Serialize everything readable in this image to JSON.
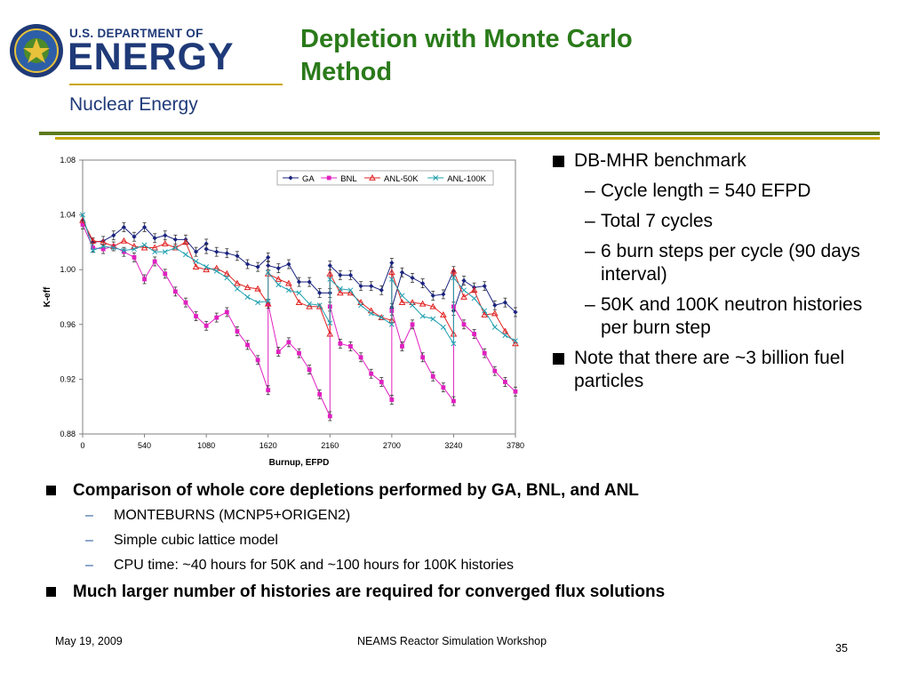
{
  "logo": {
    "small_text": "U.S. DEPARTMENT OF",
    "big_text": "ENERGY",
    "sub_text": "Nuclear Energy",
    "seal_icon": "doe-seal-icon"
  },
  "slide": {
    "title_line1": "Depletion with Monte Carlo",
    "title_line2": "Method"
  },
  "right_bullets": {
    "b1": "DB-MHR benchmark",
    "s1": "Cycle length = 540 EFPD",
    "s2": "Total 7 cycles",
    "s3": "6 burn steps per cycle (90 days interval)",
    "s4": "50K and 100K neutron histories per burn step",
    "b2": "Note that there are ~3 billion fuel particles",
    "dash": "–"
  },
  "bottom_bullets": {
    "b1": "Comparison of whole core depletions performed by GA, BNL, and ANL",
    "s1": "MONTEBURNS (MCNP5+ORIGEN2)",
    "s2": "Simple cubic lattice model",
    "s3": "CPU time: ~40 hours for 50K and ~100 hours for 100K histories",
    "b2": "Much larger number of histories are required for converged flux solutions",
    "dash": "–"
  },
  "footer": {
    "date": "May 19, 2009",
    "center": "NEAMS Reactor Simulation Workshop",
    "page": "35"
  },
  "colors": {
    "title_green": "#2a7a1a",
    "doe_blue": "#1f3a78",
    "gold": "#c9a600",
    "olive": "#5e7a1f"
  },
  "chart_data": {
    "type": "line",
    "xlabel": "Burnup, EFPD",
    "ylabel": "K-eff",
    "xlim": [
      0,
      3780
    ],
    "ylim": [
      0.88,
      1.08
    ],
    "xticks": [
      "0",
      "540",
      "1080",
      "1620",
      "2160",
      "2700",
      "3240",
      "3780"
    ],
    "yticks": [
      "0.88",
      "0.92",
      "0.96",
      "1.00",
      "1.04",
      "1.08"
    ],
    "grid": false,
    "legend_position": "top-right",
    "series": [
      {
        "name": "GA",
        "color": "#1a237e",
        "marker": "diamond",
        "points": [
          [
            0,
            1.036
          ],
          [
            90,
            1.02
          ],
          [
            180,
            1.021
          ],
          [
            270,
            1.025
          ],
          [
            360,
            1.031
          ],
          [
            450,
            1.024
          ],
          [
            540,
            1.031
          ],
          [
            630,
            1.023
          ],
          [
            720,
            1.025
          ],
          [
            810,
            1.022
          ],
          [
            900,
            1.022
          ],
          [
            990,
            1.013
          ],
          [
            1080,
            1.019
          ],
          [
            1080,
            1.015
          ],
          [
            1170,
            1.013
          ],
          [
            1260,
            1.012
          ],
          [
            1350,
            1.01
          ],
          [
            1440,
            1.004
          ],
          [
            1530,
            1.002
          ],
          [
            1620,
            1.009
          ],
          [
            1620,
            1.003
          ],
          [
            1710,
            1.001
          ],
          [
            1800,
            1.004
          ],
          [
            1890,
            0.991
          ],
          [
            1980,
            0.991
          ],
          [
            2070,
            0.983
          ],
          [
            2160,
            0.983
          ],
          [
            2160,
            1.003
          ],
          [
            2250,
            0.996
          ],
          [
            2340,
            0.996
          ],
          [
            2430,
            0.988
          ],
          [
            2520,
            0.988
          ],
          [
            2610,
            0.985
          ],
          [
            2700,
            1.005
          ],
          [
            2700,
            0.972
          ],
          [
            2790,
            0.998
          ],
          [
            2880,
            0.994
          ],
          [
            2970,
            0.99
          ],
          [
            3060,
            0.981
          ],
          [
            3150,
            0.982
          ],
          [
            3240,
            0.999
          ],
          [
            3240,
            0.97
          ],
          [
            3330,
            0.992
          ],
          [
            3420,
            0.987
          ],
          [
            3510,
            0.988
          ],
          [
            3600,
            0.974
          ],
          [
            3690,
            0.976
          ],
          [
            3780,
            0.969
          ]
        ]
      },
      {
        "name": "BNL",
        "color": "#e020c0",
        "marker": "square",
        "points": [
          [
            0,
            1.033
          ],
          [
            90,
            1.016
          ],
          [
            180,
            1.015
          ],
          [
            270,
            1.017
          ],
          [
            360,
            1.013
          ],
          [
            450,
            1.009
          ],
          [
            540,
            0.993
          ],
          [
            630,
            1.006
          ],
          [
            720,
            0.997
          ],
          [
            810,
            0.984
          ],
          [
            900,
            0.976
          ],
          [
            990,
            0.966
          ],
          [
            1080,
            0.959
          ],
          [
            1170,
            0.965
          ],
          [
            1260,
            0.969
          ],
          [
            1350,
            0.955
          ],
          [
            1440,
            0.945
          ],
          [
            1530,
            0.934
          ],
          [
            1620,
            0.912
          ],
          [
            1620,
            0.975
          ],
          [
            1710,
            0.94
          ],
          [
            1800,
            0.947
          ],
          [
            1890,
            0.939
          ],
          [
            1980,
            0.927
          ],
          [
            2070,
            0.909
          ],
          [
            2160,
            0.893
          ],
          [
            2160,
            0.973
          ],
          [
            2250,
            0.946
          ],
          [
            2340,
            0.944
          ],
          [
            2430,
            0.936
          ],
          [
            2520,
            0.924
          ],
          [
            2610,
            0.918
          ],
          [
            2700,
            0.905
          ],
          [
            2700,
            0.97
          ],
          [
            2790,
            0.944
          ],
          [
            2880,
            0.96
          ],
          [
            2970,
            0.936
          ],
          [
            3060,
            0.922
          ],
          [
            3150,
            0.914
          ],
          [
            3240,
            0.904
          ],
          [
            3240,
            0.973
          ],
          [
            3330,
            0.96
          ],
          [
            3420,
            0.953
          ],
          [
            3510,
            0.939
          ],
          [
            3600,
            0.926
          ],
          [
            3690,
            0.918
          ],
          [
            3780,
            0.911
          ]
        ]
      },
      {
        "name": "ANL-50K",
        "color": "#e02020",
        "marker": "triangle",
        "points": [
          [
            0,
            1.036
          ],
          [
            90,
            1.021
          ],
          [
            180,
            1.02
          ],
          [
            270,
            1.017
          ],
          [
            360,
            1.021
          ],
          [
            450,
            1.017
          ],
          [
            540,
            1.016
          ],
          [
            630,
            1.016
          ],
          [
            720,
            1.019
          ],
          [
            810,
            1.016
          ],
          [
            900,
            1.02
          ],
          [
            990,
            1.002
          ],
          [
            1080,
            1.0
          ],
          [
            1170,
            1.001
          ],
          [
            1260,
            0.997
          ],
          [
            1350,
            0.99
          ],
          [
            1440,
            0.987
          ],
          [
            1530,
            0.986
          ],
          [
            1620,
            0.975
          ],
          [
            1620,
            0.997
          ],
          [
            1710,
            0.993
          ],
          [
            1800,
            0.99
          ],
          [
            1890,
            0.976
          ],
          [
            1980,
            0.973
          ],
          [
            2070,
            0.973
          ],
          [
            2160,
            0.953
          ],
          [
            2160,
            0.997
          ],
          [
            2250,
            0.983
          ],
          [
            2340,
            0.983
          ],
          [
            2430,
            0.976
          ],
          [
            2520,
            0.97
          ],
          [
            2610,
            0.965
          ],
          [
            2700,
            0.963
          ],
          [
            2700,
            0.998
          ],
          [
            2790,
            0.976
          ],
          [
            2880,
            0.976
          ],
          [
            2970,
            0.975
          ],
          [
            3060,
            0.973
          ],
          [
            3150,
            0.967
          ],
          [
            3240,
            0.953
          ],
          [
            3240,
            0.999
          ],
          [
            3330,
            0.98
          ],
          [
            3420,
            0.985
          ],
          [
            3510,
            0.967
          ],
          [
            3600,
            0.968
          ],
          [
            3690,
            0.955
          ],
          [
            3780,
            0.946
          ]
        ]
      },
      {
        "name": "ANL-100K",
        "color": "#20a0b0",
        "marker": "x",
        "points": [
          [
            0,
            1.04
          ],
          [
            90,
            1.014
          ],
          [
            180,
            1.017
          ],
          [
            270,
            1.016
          ],
          [
            360,
            1.014
          ],
          [
            450,
            1.015
          ],
          [
            540,
            1.018
          ],
          [
            630,
            1.013
          ],
          [
            720,
            1.013
          ],
          [
            810,
            1.016
          ],
          [
            900,
            1.011
          ],
          [
            990,
            1.006
          ],
          [
            1080,
            1.002
          ],
          [
            1170,
            0.999
          ],
          [
            1260,
            0.994
          ],
          [
            1350,
            0.986
          ],
          [
            1440,
            0.98
          ],
          [
            1530,
            0.976
          ],
          [
            1620,
            0.977
          ],
          [
            1620,
            0.998
          ],
          [
            1710,
            0.989
          ],
          [
            1800,
            0.985
          ],
          [
            1890,
            0.983
          ],
          [
            1980,
            0.975
          ],
          [
            2070,
            0.974
          ],
          [
            2160,
            0.961
          ],
          [
            2160,
            0.993
          ],
          [
            2250,
            0.986
          ],
          [
            2340,
            0.985
          ],
          [
            2430,
            0.974
          ],
          [
            2520,
            0.968
          ],
          [
            2610,
            0.965
          ],
          [
            2700,
            0.96
          ],
          [
            2700,
            0.993
          ],
          [
            2790,
            0.981
          ],
          [
            2880,
            0.974
          ],
          [
            2970,
            0.966
          ],
          [
            3060,
            0.964
          ],
          [
            3150,
            0.958
          ],
          [
            3240,
            0.946
          ],
          [
            3240,
            0.994
          ],
          [
            3330,
            0.985
          ],
          [
            3420,
            0.979
          ],
          [
            3510,
            0.97
          ],
          [
            3600,
            0.958
          ],
          [
            3690,
            0.952
          ],
          [
            3780,
            0.948
          ]
        ]
      }
    ]
  }
}
